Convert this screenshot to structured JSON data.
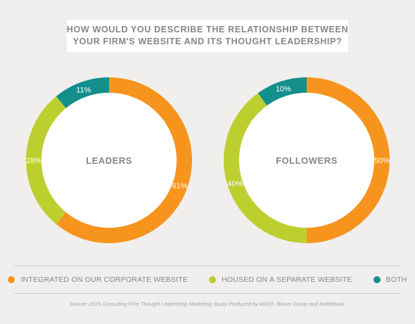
{
  "title": {
    "line1": "HOW WOULD YOU DESCRIBE THE RELATIONSHIP BETWEEN",
    "line2": "YOUR FIRM'S WEBSITE AND ITS THOUGHT LEADERSHIP?"
  },
  "colors": {
    "integrated": "#f7941d",
    "separate": "#bdcf2f",
    "both": "#138f8c",
    "center_text": "#8a8583",
    "background": "#f0efee"
  },
  "chart_data": [
    {
      "type": "pie",
      "title": "LEADERS",
      "categories": [
        "INTEGRATED ON OUR CORPORATE WEBSITE",
        "HOUSED ON A SEPARATE WEBSITE",
        "BOTH"
      ],
      "values": [
        61,
        28,
        11
      ],
      "labels": [
        "61%",
        "28%",
        "11%"
      ]
    },
    {
      "type": "pie",
      "title": "FOLLOWERS",
      "categories": [
        "INTEGRATED ON OUR CORPORATE WEBSITE",
        "HOUSED ON A SEPARATE WEBSITE",
        "BOTH"
      ],
      "values": [
        50,
        40,
        10
      ],
      "labels": [
        "50%",
        "40%",
        "10%"
      ]
    }
  ],
  "legend": [
    {
      "label": "INTEGRATED ON OUR CORPORATE WEBSITE",
      "color": "#f7941d"
    },
    {
      "label": "HOUSED ON A SEPARATE WEBSITE",
      "color": "#bdcf2f"
    },
    {
      "label": "BOTH",
      "color": "#138f8c"
    }
  ],
  "source": "Source: 2015 Consulting Firm Thought Leadership Marketing Study Produced by AMCF, Bloom Group and Rattleback."
}
